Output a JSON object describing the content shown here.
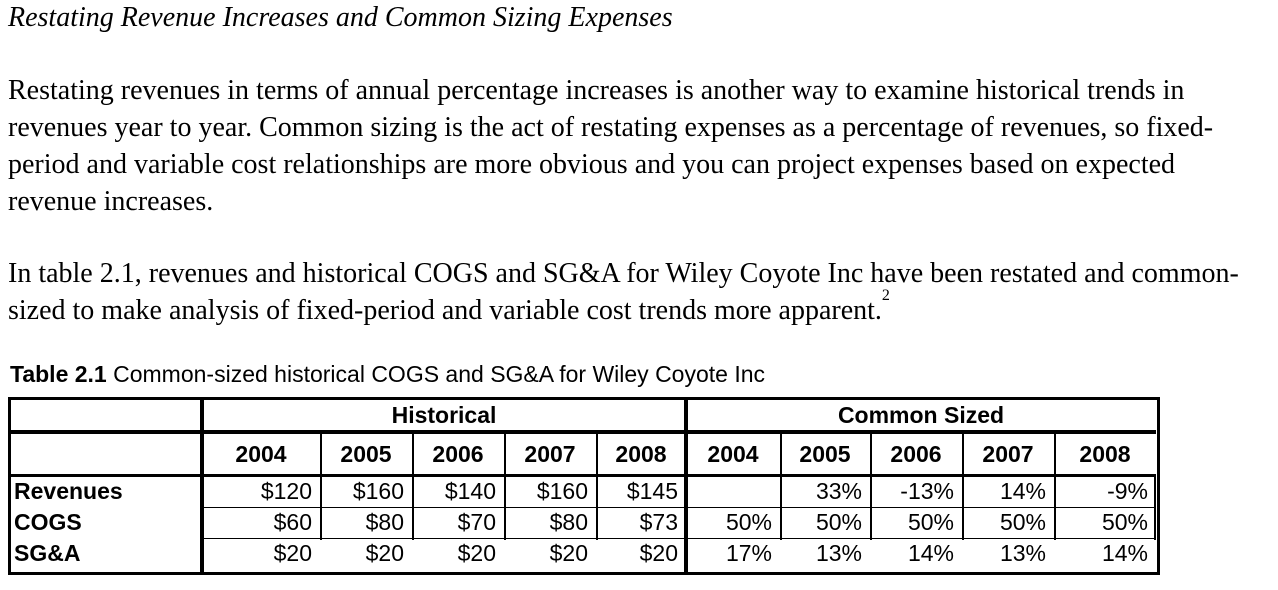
{
  "heading": "Restating Revenue Increases and Common Sizing Expenses",
  "paragraph1": "Restating revenues in terms of annual percentage increases is another way to examine historical trends in revenues year to year. Common sizing is the act of restating expenses as a percentage of revenues, so fixed-period and variable cost relationships are more obvious and you can project expenses based on expected revenue increases.",
  "paragraph2": "In table 2.1, revenues and historical COGS and SG&A for Wiley Coyote Inc have been restated and common-sized to make analysis of fixed-period and variable cost trends more apparent.",
  "footnote_marker": "2",
  "caption": {
    "label": "Table 2.1",
    "text": " Common-sized historical COGS and SG&A for Wiley Coyote Inc"
  },
  "table": {
    "group_headers": [
      "Historical",
      "Common Sized"
    ],
    "years": [
      "2004",
      "2005",
      "2006",
      "2007",
      "2008",
      "2004",
      "2005",
      "2006",
      "2007",
      "2008"
    ],
    "rows": [
      {
        "label": "Revenues",
        "values": [
          "$120",
          "$160",
          "$140",
          "$160",
          "$145",
          "",
          "33%",
          "-13%",
          "14%",
          "-9%"
        ]
      },
      {
        "label": "COGS",
        "values": [
          "$60",
          "$80",
          "$70",
          "$80",
          "$73",
          "50%",
          "50%",
          "50%",
          "50%",
          "50%"
        ]
      },
      {
        "label": "SG&A",
        "values": [
          "$20",
          "$20",
          "$20",
          "$20",
          "$20",
          "17%",
          "13%",
          "14%",
          "13%",
          "14%"
        ]
      }
    ]
  }
}
